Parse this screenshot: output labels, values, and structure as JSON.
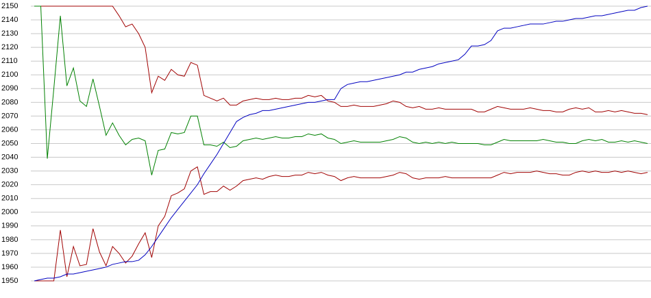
{
  "chart_data": {
    "type": "line",
    "ylim": [
      1950,
      2150
    ],
    "yticks": [
      1950,
      1960,
      1970,
      1980,
      1990,
      2000,
      2010,
      2020,
      2030,
      2040,
      2050,
      2060,
      2070,
      2080,
      2090,
      2100,
      2110,
      2120,
      2130,
      2140,
      2150
    ],
    "grid": true,
    "series": [
      {
        "color": "#a00000",
        "values": [
          2150,
          2150,
          2150,
          2150,
          2150,
          2150,
          2150,
          2150,
          2150,
          2150,
          2150,
          2150,
          2150,
          2143,
          2135,
          2137,
          2130,
          2120,
          2087,
          2099,
          2096,
          2104,
          2100,
          2099,
          2109,
          2107,
          2085,
          2083,
          2081,
          2083,
          2078,
          2078,
          2081,
          2082,
          2083,
          2082,
          2082,
          2083,
          2082,
          2082,
          2083,
          2083,
          2085,
          2084,
          2085,
          2081,
          2080,
          2077,
          2077,
          2078,
          2077,
          2077,
          2077,
          2078,
          2079,
          2081,
          2080,
          2077,
          2076,
          2077,
          2075,
          2075,
          2076,
          2075,
          2075,
          2075,
          2075,
          2075,
          2073,
          2073,
          2075,
          2077,
          2076,
          2075,
          2075,
          2075,
          2076,
          2075,
          2074,
          2074,
          2073,
          2073,
          2075,
          2076,
          2075,
          2076,
          2073,
          2073,
          2074,
          2073,
          2074,
          2073,
          2072,
          2072,
          2071
        ]
      },
      {
        "color": "#008000",
        "values": [
          2150,
          2150,
          2039,
          2090,
          2143,
          2092,
          2105,
          2081,
          2077,
          2097,
          2077,
          2056,
          2065,
          2056,
          2049,
          2053,
          2054,
          2052,
          2027,
          2045,
          2046,
          2058,
          2057,
          2058,
          2070,
          2070,
          2049,
          2049,
          2048,
          2051,
          2047,
          2048,
          2052,
          2053,
          2054,
          2053,
          2054,
          2055,
          2054,
          2054,
          2055,
          2055,
          2057,
          2056,
          2057,
          2054,
          2053,
          2050,
          2051,
          2052,
          2051,
          2051,
          2051,
          2051,
          2052,
          2053,
          2055,
          2054,
          2051,
          2050,
          2051,
          2050,
          2051,
          2050,
          2051,
          2050,
          2050,
          2050,
          2050,
          2049,
          2049,
          2051,
          2053,
          2052,
          2052,
          2052,
          2052,
          2052,
          2053,
          2052,
          2051,
          2051,
          2050,
          2050,
          2052,
          2053,
          2052,
          2053,
          2051,
          2051,
          2052,
          2051,
          2052,
          2051,
          2050
        ]
      },
      {
        "color": "#a00000",
        "values": [
          1950,
          1950,
          1950,
          1950,
          1987,
          1953,
          1975,
          1961,
          1962,
          1988,
          1971,
          1961,
          1975,
          1970,
          1963,
          1968,
          1977,
          1985,
          1967,
          1990,
          1997,
          2012,
          2014,
          2017,
          2030,
          2033,
          2013,
          2015,
          2015,
          2019,
          2016,
          2019,
          2023,
          2024,
          2025,
          2024,
          2026,
          2027,
          2026,
          2026,
          2027,
          2027,
          2029,
          2028,
          2029,
          2027,
          2026,
          2023,
          2025,
          2026,
          2025,
          2025,
          2025,
          2025,
          2026,
          2027,
          2029,
          2028,
          2025,
          2024,
          2025,
          2025,
          2025,
          2026,
          2025,
          2025,
          2025,
          2025,
          2025,
          2025,
          2025,
          2027,
          2029,
          2028,
          2029,
          2029,
          2029,
          2030,
          2029,
          2028,
          2028,
          2027,
          2027,
          2029,
          2030,
          2029,
          2030,
          2029,
          2029,
          2030,
          2029,
          2030,
          2029,
          2028,
          2029
        ]
      },
      {
        "color": "#0000c0",
        "values": [
          1950,
          1951,
          1952,
          1952,
          1953,
          1955,
          1955,
          1956,
          1957,
          1958,
          1959,
          1960,
          1962,
          1963,
          1964,
          1964,
          1965,
          1969,
          1975,
          1982,
          1989,
          1996,
          2002,
          2008,
          2014,
          2020,
          2028,
          2035,
          2042,
          2050,
          2058,
          2066,
          2069,
          2071,
          2072,
          2074,
          2074,
          2075,
          2076,
          2077,
          2078,
          2079,
          2080,
          2080,
          2081,
          2082,
          2082,
          2090,
          2093,
          2094,
          2095,
          2095,
          2096,
          2097,
          2098,
          2099,
          2100,
          2102,
          2102,
          2104,
          2105,
          2106,
          2108,
          2109,
          2110,
          2111,
          2115,
          2121,
          2121,
          2122,
          2125,
          2132,
          2134,
          2134,
          2135,
          2136,
          2137,
          2137,
          2137,
          2138,
          2139,
          2139,
          2140,
          2141,
          2141,
          2142,
          2143,
          2143,
          2144,
          2145,
          2146,
          2147,
          2147,
          2149,
          2150
        ]
      }
    ]
  }
}
